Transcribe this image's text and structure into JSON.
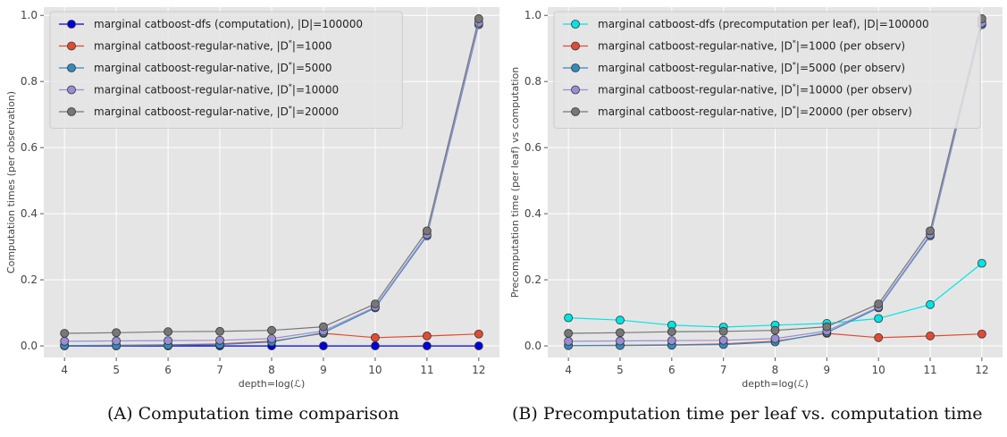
{
  "chart_data": [
    {
      "type": "line",
      "xlabel": "depth=log(ℒ)",
      "ylabel": "Computation times (per observation)",
      "x": [
        4,
        5,
        6,
        7,
        8,
        9,
        10,
        11,
        12
      ],
      "xlim": [
        3.6,
        12.4
      ],
      "ylim": [
        -0.035,
        1.025
      ],
      "yticks": [
        "0.0",
        "0.2",
        "0.4",
        "0.6",
        "0.8",
        "1.0"
      ],
      "grid": true,
      "legend_position": "top-left",
      "caption": "(A) Computation time comparison",
      "series": [
        {
          "name": "marginal catboost-dfs (computation), |D|=100000",
          "color": "#0000dd",
          "line_color": "#0000dd",
          "values": [
            0.0,
            0.0,
            0.0,
            0.0,
            0.0,
            0.0,
            0.0,
            0.0,
            0.0
          ]
        },
        {
          "name": "marginal catboost-regular-native, |D*|=1000",
          "color": "#e24a33",
          "line_color": "#e24a33",
          "values": [
            0.001,
            0.002,
            0.003,
            0.006,
            0.014,
            0.038,
            0.025,
            0.03,
            0.036
          ]
        },
        {
          "name": "marginal catboost-regular-native, |D*|=5000",
          "color": "#348abd",
          "line_color": "#348abd",
          "values": [
            0.001,
            0.001,
            0.002,
            0.004,
            0.012,
            0.04,
            0.115,
            0.333,
            0.972
          ]
        },
        {
          "name": "marginal catboost-regular-native, |D*|=10000",
          "color": "#988ed5",
          "line_color": "#988ed5",
          "values": [
            0.014,
            0.015,
            0.016,
            0.017,
            0.022,
            0.045,
            0.118,
            0.337,
            0.977
          ]
        },
        {
          "name": "marginal catboost-regular-native, |D*|=20000",
          "color": "#777777",
          "line_color": "#777777",
          "values": [
            0.038,
            0.04,
            0.043,
            0.044,
            0.047,
            0.058,
            0.127,
            0.348,
            0.99
          ]
        }
      ]
    },
    {
      "type": "line",
      "xlabel": "depth=log(ℒ)",
      "ylabel": "Precomputation time (per leaf) vs computation",
      "x": [
        4,
        5,
        6,
        7,
        8,
        9,
        10,
        11,
        12
      ],
      "xlim": [
        3.6,
        12.4
      ],
      "ylim": [
        -0.035,
        1.025
      ],
      "yticks": [
        "0.0",
        "0.2",
        "0.4",
        "0.6",
        "0.8",
        "1.0"
      ],
      "grid": true,
      "legend_position": "top-left",
      "caption": "(B) Precomputation time per leaf vs. computation time",
      "series": [
        {
          "name": "marginal catboost-dfs (precomputation per leaf), |D|=100000",
          "color": "#00e5e5",
          "line_color": "#00e5e5",
          "values": [
            0.085,
            0.078,
            0.063,
            0.057,
            0.063,
            0.068,
            0.083,
            0.125,
            0.25
          ]
        },
        {
          "name": "marginal catboost-regular-native, |D*|=1000 (per observ)",
          "color": "#e24a33",
          "line_color": "#e24a33",
          "values": [
            0.001,
            0.002,
            0.003,
            0.006,
            0.014,
            0.038,
            0.025,
            0.03,
            0.036
          ]
        },
        {
          "name": "marginal catboost-regular-native, |D*|=5000 (per observ)",
          "color": "#348abd",
          "line_color": "#348abd",
          "values": [
            0.001,
            0.001,
            0.002,
            0.004,
            0.012,
            0.04,
            0.115,
            0.333,
            0.972
          ]
        },
        {
          "name": "marginal catboost-regular-native, |D*|=10000 (per observ)",
          "color": "#988ed5",
          "line_color": "#988ed5",
          "values": [
            0.014,
            0.015,
            0.016,
            0.017,
            0.022,
            0.045,
            0.118,
            0.337,
            0.977
          ]
        },
        {
          "name": "marginal catboost-regular-native, |D*|=20000 (per observ)",
          "color": "#777777",
          "line_color": "#777777",
          "values": [
            0.038,
            0.04,
            0.043,
            0.044,
            0.047,
            0.058,
            0.127,
            0.348,
            0.99
          ]
        }
      ]
    }
  ],
  "style": {
    "plot_background": "#e5e5e5",
    "grid_color": "#ffffff",
    "marker_edge": "#333333"
  }
}
